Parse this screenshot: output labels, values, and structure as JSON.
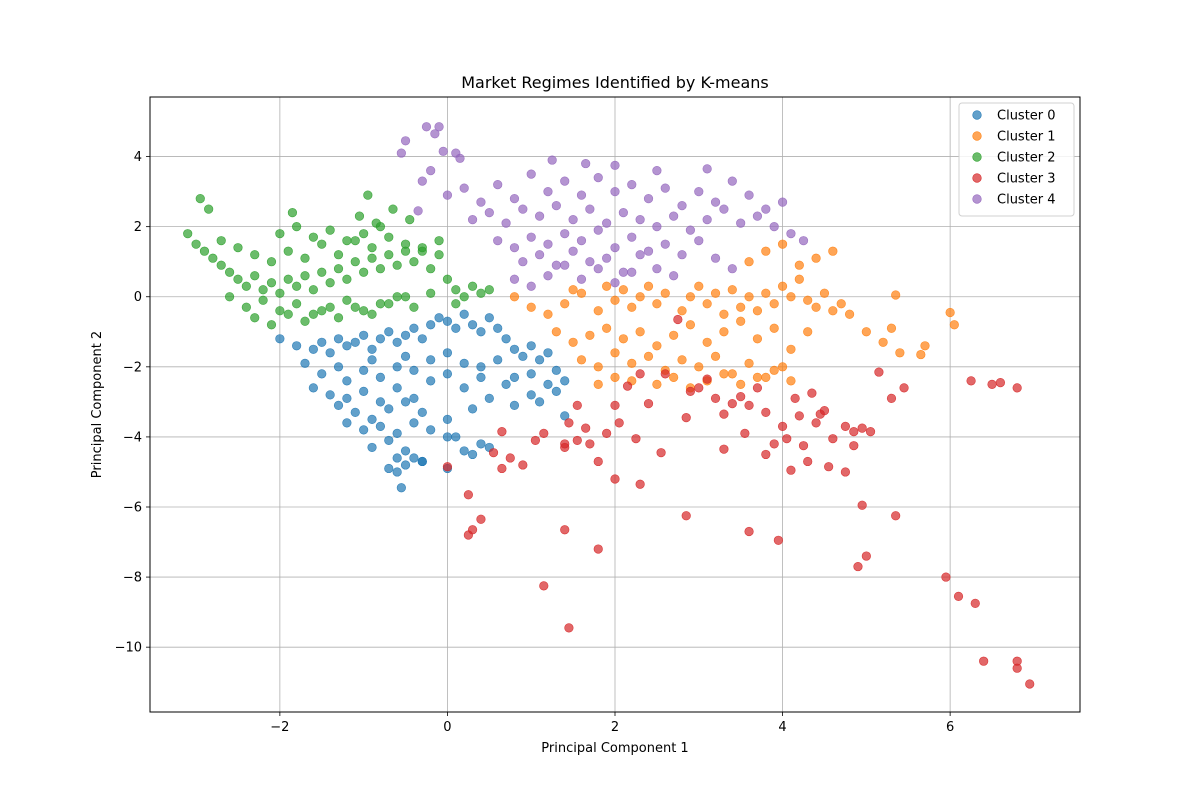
{
  "chart_data": {
    "type": "scatter",
    "title": "Market Regimes Identified by K-means",
    "xlabel": "Principal Component 1",
    "ylabel": "Principal Component 2",
    "xlim": [
      -3.55,
      7.55
    ],
    "ylim": [
      -11.85,
      5.7
    ],
    "xticks": [
      -2,
      0,
      2,
      4,
      6
    ],
    "yticks": [
      -10,
      -8,
      -6,
      -4,
      -2,
      0,
      2,
      4
    ],
    "grid": true,
    "legend_position": "top-right",
    "series": [
      {
        "name": "Cluster 0",
        "color": "#1f77b4",
        "x": [
          -2.0,
          -1.8,
          -1.6,
          -1.5,
          -1.4,
          -1.3,
          -1.2,
          -1.1,
          -1.0,
          -0.9,
          -0.8,
          -0.7,
          -0.6,
          -0.5,
          -0.4,
          -0.3,
          -0.2,
          -0.1,
          0.0,
          0.1,
          0.2,
          0.3,
          0.4,
          0.5,
          0.6,
          0.7,
          0.8,
          0.9,
          1.0,
          1.1,
          1.2,
          1.3,
          1.4,
          -1.7,
          -1.5,
          -1.3,
          -1.2,
          -1.0,
          -0.9,
          -0.8,
          -0.6,
          -0.5,
          -0.4,
          -0.2,
          0.0,
          0.2,
          0.4,
          0.6,
          0.8,
          1.0,
          1.2,
          -1.6,
          -1.4,
          -1.2,
          -1.0,
          -0.8,
          -0.6,
          -0.4,
          -0.2,
          0.0,
          0.2,
          0.4,
          0.7,
          1.0,
          1.3,
          -1.3,
          -1.1,
          -0.9,
          -0.7,
          -0.5,
          -0.3,
          0.0,
          0.3,
          0.5,
          0.8,
          1.1,
          1.4,
          -1.2,
          -1.0,
          -0.8,
          -0.6,
          -0.4,
          -0.2,
          0.1,
          0.4,
          -0.9,
          -0.7,
          -0.6,
          -0.5,
          -0.3,
          0.0,
          0.3,
          0.5,
          -0.7,
          -0.6,
          -0.5,
          -0.4,
          -0.3,
          0.0,
          0.2,
          -0.55
        ],
        "y": [
          -1.2,
          -1.4,
          -1.5,
          -1.3,
          -1.6,
          -1.2,
          -1.4,
          -1.3,
          -1.1,
          -1.5,
          -1.2,
          -1.0,
          -1.3,
          -1.1,
          -0.9,
          -1.2,
          -0.8,
          -0.6,
          -0.7,
          -0.9,
          -0.5,
          -0.8,
          -1.0,
          -0.6,
          -0.9,
          -1.2,
          -1.5,
          -1.7,
          -1.4,
          -1.8,
          -1.6,
          -2.1,
          -2.4,
          -1.9,
          -2.2,
          -2.0,
          -2.4,
          -2.1,
          -1.8,
          -2.3,
          -2.0,
          -1.7,
          -2.1,
          -1.8,
          -1.6,
          -1.9,
          -2.0,
          -1.8,
          -2.3,
          -2.2,
          -2.5,
          -2.6,
          -2.8,
          -2.9,
          -2.7,
          -3.0,
          -2.6,
          -2.9,
          -2.4,
          -2.2,
          -2.6,
          -2.3,
          -2.5,
          -2.8,
          -2.7,
          -3.1,
          -3.3,
          -3.5,
          -3.2,
          -3.0,
          -3.3,
          -3.5,
          -3.2,
          -2.9,
          -3.1,
          -3.0,
          -3.4,
          -3.6,
          -3.8,
          -3.7,
          -3.9,
          -3.6,
          -3.8,
          -4.0,
          -4.2,
          -4.3,
          -4.1,
          -4.6,
          -4.4,
          -4.7,
          -4.0,
          -4.5,
          -4.3,
          -4.9,
          -5.0,
          -4.8,
          -4.6,
          -4.7,
          -4.9,
          -4.4,
          -5.45
        ]
      },
      {
        "name": "Cluster 1",
        "color": "#ff7f0e",
        "x": [
          0.8,
          1.0,
          1.2,
          1.4,
          1.5,
          1.6,
          1.8,
          1.9,
          2.0,
          2.1,
          2.2,
          2.3,
          2.4,
          2.5,
          2.6,
          2.8,
          2.9,
          3.0,
          3.1,
          3.2,
          3.3,
          3.4,
          3.5,
          3.6,
          3.7,
          3.8,
          3.9,
          4.0,
          4.1,
          4.2,
          4.3,
          4.4,
          4.5,
          4.6,
          4.7,
          4.8,
          1.3,
          1.5,
          1.7,
          1.9,
          2.1,
          2.3,
          2.5,
          2.7,
          2.9,
          3.1,
          3.3,
          3.5,
          3.7,
          3.9,
          4.1,
          4.3,
          1.6,
          1.8,
          2.0,
          2.2,
          2.4,
          2.6,
          2.8,
          3.0,
          3.2,
          3.4,
          3.6,
          3.8,
          4.0,
          2.5,
          2.7,
          2.9,
          3.1,
          3.3,
          3.5,
          3.7,
          3.9,
          4.1,
          3.6,
          3.8,
          4.0,
          4.2,
          4.4,
          4.6,
          5.0,
          5.2,
          5.3,
          5.4,
          5.7,
          6.0,
          6.05,
          5.65,
          5.35,
          1.8,
          2.0,
          2.2
        ],
        "y": [
          0.0,
          -0.3,
          -0.5,
          -0.2,
          0.2,
          0.1,
          -0.4,
          0.3,
          -0.1,
          0.2,
          -0.3,
          0.0,
          0.3,
          -0.2,
          0.1,
          -0.4,
          0.0,
          0.3,
          -0.2,
          0.1,
          -0.5,
          0.2,
          -0.3,
          0.0,
          -0.4,
          0.1,
          -0.2,
          0.3,
          0.0,
          0.5,
          -0.1,
          -0.3,
          0.1,
          -0.4,
          -0.2,
          -0.5,
          -1.0,
          -1.3,
          -1.1,
          -0.9,
          -1.2,
          -1.0,
          -1.4,
          -1.1,
          -0.8,
          -1.3,
          -1.0,
          -0.7,
          -1.2,
          -0.9,
          -1.5,
          -1.0,
          -1.8,
          -2.0,
          -1.6,
          -1.9,
          -1.7,
          -2.1,
          -1.8,
          -2.0,
          -1.7,
          -2.2,
          -1.9,
          -2.3,
          -2.0,
          -2.5,
          -2.3,
          -2.6,
          -2.4,
          -2.2,
          -2.5,
          -2.3,
          -2.1,
          -2.4,
          1.0,
          1.3,
          1.5,
          0.9,
          1.1,
          1.3,
          -1.0,
          -1.3,
          -0.9,
          -1.6,
          -1.4,
          -0.45,
          -0.8,
          -1.65,
          0.05,
          -2.5,
          -2.3,
          -2.4
        ]
      },
      {
        "name": "Cluster 2",
        "color": "#2ca02c",
        "x": [
          -3.1,
          -3.0,
          -2.9,
          -2.8,
          -2.7,
          -2.6,
          -2.5,
          -2.4,
          -2.3,
          -2.2,
          -2.1,
          -2.0,
          -1.9,
          -1.8,
          -1.7,
          -1.6,
          -1.5,
          -1.4,
          -1.3,
          -1.2,
          -1.1,
          -1.0,
          -0.9,
          -0.8,
          -0.7,
          -0.6,
          -0.5,
          -0.4,
          -0.3,
          -0.2,
          -0.1,
          0.0,
          0.1,
          0.2,
          0.3,
          0.4,
          0.5,
          -2.7,
          -2.5,
          -2.3,
          -2.1,
          -1.9,
          -1.7,
          -1.5,
          -1.3,
          -1.1,
          -0.9,
          -0.7,
          -0.5,
          -0.3,
          -0.1,
          0.1,
          -2.6,
          -2.4,
          -2.2,
          -2.0,
          -1.8,
          -1.6,
          -1.4,
          -1.2,
          -1.0,
          -0.8,
          -0.6,
          -0.4,
          -0.2,
          -2.3,
          -2.1,
          -1.9,
          -1.7,
          -1.5,
          -1.3,
          -1.1,
          -0.9,
          -0.7,
          -0.5,
          -2.0,
          -1.8,
          -1.6,
          -1.4,
          -1.2,
          -1.0,
          -0.8,
          -2.95,
          -2.85,
          -1.85,
          -0.95,
          -1.05,
          -0.85,
          -0.65,
          -0.45
        ],
        "y": [
          1.8,
          1.5,
          1.3,
          1.1,
          0.9,
          0.7,
          0.5,
          0.3,
          0.6,
          0.2,
          0.4,
          0.1,
          0.5,
          0.3,
          0.6,
          0.2,
          0.7,
          0.4,
          0.8,
          0.5,
          1.0,
          0.7,
          1.1,
          0.8,
          1.2,
          0.9,
          1.3,
          1.0,
          1.4,
          0.8,
          1.2,
          0.5,
          0.2,
          0.0,
          0.3,
          0.1,
          0.2,
          1.6,
          1.4,
          1.2,
          1.0,
          1.3,
          1.1,
          1.5,
          1.2,
          1.6,
          1.4,
          1.7,
          1.5,
          1.3,
          1.6,
          -0.2,
          0.0,
          -0.3,
          -0.1,
          -0.4,
          -0.2,
          -0.5,
          -0.3,
          -0.1,
          -0.4,
          -0.2,
          0.0,
          -0.3,
          0.1,
          -0.6,
          -0.8,
          -0.5,
          -0.7,
          -0.4,
          -0.6,
          -0.3,
          -0.5,
          -0.2,
          0.0,
          1.8,
          2.0,
          1.7,
          1.9,
          1.6,
          1.8,
          2.0,
          2.8,
          2.5,
          2.4,
          2.9,
          2.3,
          2.1,
          2.5,
          2.2
        ]
      },
      {
        "name": "Cluster 3",
        "color": "#d62728",
        "x": [
          0.0,
          0.25,
          0.3,
          0.4,
          0.55,
          0.65,
          0.75,
          0.9,
          1.05,
          1.15,
          1.4,
          1.45,
          1.55,
          1.7,
          1.8,
          1.9,
          2.0,
          2.05,
          2.15,
          2.25,
          2.3,
          2.4,
          2.55,
          2.6,
          2.75,
          2.85,
          2.9,
          3.0,
          3.1,
          3.2,
          3.3,
          3.4,
          3.5,
          3.6,
          3.7,
          3.8,
          3.9,
          4.0,
          4.1,
          4.2,
          4.3,
          4.4,
          4.5,
          4.6,
          4.75,
          4.85,
          4.95,
          5.05,
          5.15,
          5.3,
          5.45,
          6.25,
          6.5,
          6.6,
          6.8,
          1.4,
          1.8,
          2.85,
          3.6,
          3.95,
          4.9,
          5.0,
          5.35,
          4.95,
          5.95,
          6.1,
          6.3,
          6.4,
          6.8,
          6.8,
          6.95,
          1.15,
          1.45,
          1.4,
          0.65,
          0.25,
          1.55,
          1.65,
          2.0,
          2.3,
          3.3,
          3.55,
          3.8,
          4.05,
          4.15,
          4.25,
          4.35,
          4.45,
          4.55,
          4.75,
          4.85
        ],
        "y": [
          -4.85,
          -5.65,
          -6.65,
          -6.35,
          -4.45,
          -4.9,
          -4.6,
          -4.8,
          -4.1,
          -3.9,
          -4.2,
          -3.6,
          -3.1,
          -4.2,
          -4.7,
          -3.9,
          -5.2,
          -3.6,
          -2.55,
          -4.05,
          -2.2,
          -3.05,
          -4.45,
          -2.2,
          -0.65,
          -3.45,
          -2.7,
          -2.6,
          -2.35,
          -2.9,
          -3.35,
          -3.05,
          -2.85,
          -3.1,
          -2.6,
          -3.3,
          -4.2,
          -3.7,
          -4.95,
          -3.4,
          -4.7,
          -3.6,
          -3.25,
          -4.05,
          -5.0,
          -3.85,
          -3.75,
          -3.85,
          -2.15,
          -2.9,
          -2.6,
          -2.4,
          -2.5,
          -2.45,
          -2.6,
          -6.65,
          -7.2,
          -6.25,
          -6.7,
          -6.95,
          -7.7,
          -7.4,
          -6.25,
          -5.95,
          -8.0,
          -8.55,
          -8.75,
          -10.4,
          -10.4,
          -10.6,
          -11.05,
          -8.25,
          -9.45,
          -4.3,
          -3.85,
          -6.8,
          -4.1,
          -3.75,
          -3.1,
          -5.35,
          -4.35,
          -3.9,
          -4.5,
          -4.05,
          -2.9,
          -4.25,
          -2.75,
          -3.35,
          -4.85,
          -3.7,
          -4.25
        ]
      },
      {
        "name": "Cluster 4",
        "color": "#9467bd",
        "x": [
          -0.55,
          -0.5,
          -0.25,
          -0.15,
          -0.1,
          0.1,
          -0.3,
          -0.2,
          0.0,
          0.2,
          0.4,
          0.6,
          0.8,
          1.0,
          1.2,
          1.4,
          1.6,
          1.8,
          2.0,
          2.2,
          2.4,
          2.6,
          2.8,
          3.0,
          3.2,
          3.4,
          3.6,
          3.8,
          4.0,
          0.3,
          0.5,
          0.7,
          0.9,
          1.1,
          1.3,
          1.5,
          1.7,
          1.9,
          2.1,
          2.3,
          2.5,
          2.7,
          2.9,
          3.1,
          3.3,
          3.5,
          3.7,
          3.9,
          4.1,
          0.6,
          0.8,
          1.0,
          1.2,
          1.4,
          1.6,
          1.8,
          2.0,
          2.2,
          2.4,
          2.6,
          2.8,
          3.0,
          3.2,
          3.4,
          0.9,
          1.1,
          1.3,
          1.5,
          1.7,
          1.9,
          2.1,
          2.3,
          2.5,
          2.7,
          1.2,
          1.4,
          1.6,
          1.8,
          2.0,
          2.2,
          0.8,
          1.0,
          1.25,
          1.65,
          2.0,
          2.5,
          3.1,
          4.25,
          -0.05,
          0.15,
          -0.35
        ],
        "y": [
          4.1,
          4.45,
          4.85,
          4.65,
          4.85,
          4.1,
          3.3,
          3.6,
          2.9,
          3.1,
          2.7,
          3.2,
          2.8,
          3.5,
          3.0,
          3.3,
          2.9,
          3.4,
          3.0,
          3.2,
          2.8,
          3.1,
          2.6,
          3.0,
          2.7,
          3.3,
          2.9,
          2.5,
          2.7,
          2.2,
          2.4,
          2.1,
          2.5,
          2.3,
          2.6,
          2.2,
          2.5,
          2.1,
          2.4,
          2.2,
          2.0,
          2.3,
          1.9,
          2.2,
          2.5,
          2.1,
          2.3,
          2.0,
          1.8,
          1.6,
          1.4,
          1.7,
          1.5,
          1.8,
          1.6,
          1.9,
          1.4,
          1.7,
          1.3,
          1.5,
          1.2,
          1.6,
          1.1,
          0.8,
          1.0,
          1.2,
          0.9,
          1.3,
          1.0,
          1.1,
          0.7,
          1.2,
          0.8,
          0.6,
          0.6,
          0.9,
          0.5,
          0.8,
          0.4,
          0.7,
          0.5,
          0.3,
          3.9,
          3.8,
          3.75,
          3.6,
          3.65,
          1.6,
          4.15,
          3.95,
          2.45
        ]
      }
    ]
  }
}
